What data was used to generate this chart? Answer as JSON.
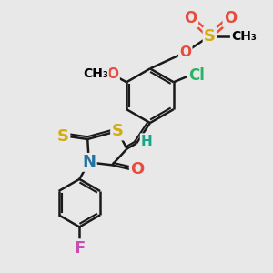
{
  "bg_color": "#e8e8e8",
  "atom_colors": {
    "C": "#000000",
    "H": "#17a589",
    "O": "#e74c3c",
    "S": "#d4ac0d",
    "N": "#2471a3",
    "Cl": "#28b463",
    "F": "#cb4caf"
  },
  "bond_color": "#1a1a1a",
  "bond_width": 1.8,
  "font_size_atom": 11,
  "figsize": [
    3.0,
    3.0
  ],
  "dpi": 100
}
